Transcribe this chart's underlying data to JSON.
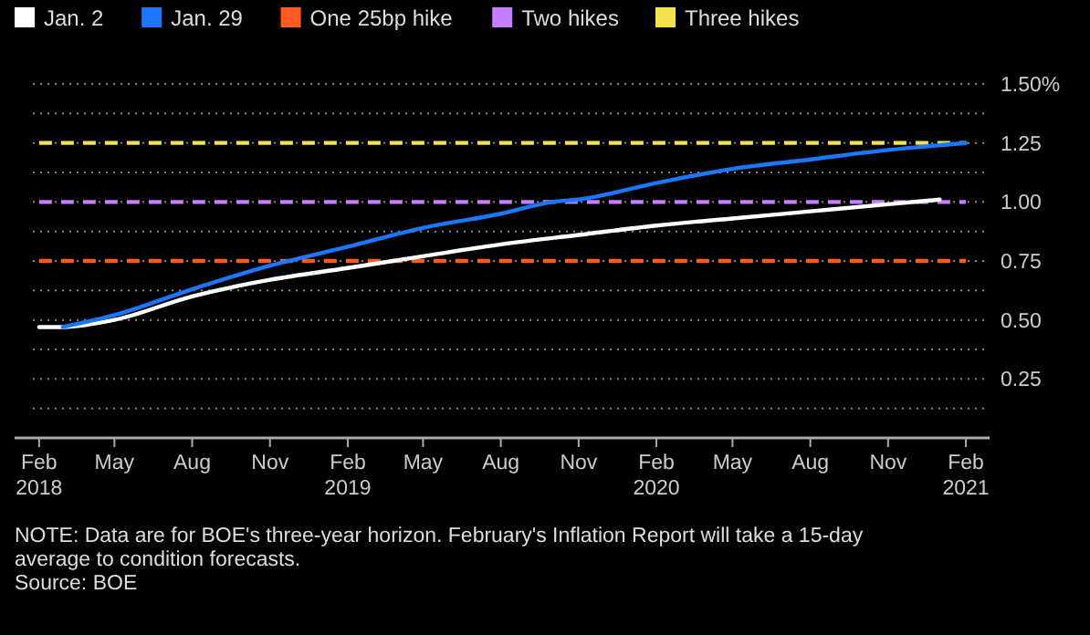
{
  "chart_data": {
    "type": "line",
    "series": [
      {
        "name": "Jan. 2",
        "color": "#ffffff",
        "x": [
          "2018-02",
          "2018-03",
          "2018-05",
          "2018-08",
          "2018-11",
          "2019-02",
          "2019-05",
          "2019-08",
          "2019-11",
          "2020-02",
          "2020-05",
          "2020-08",
          "2020-11",
          "2021-01"
        ],
        "values": [
          0.47,
          0.47,
          0.5,
          0.6,
          0.67,
          0.72,
          0.77,
          0.82,
          0.86,
          0.9,
          0.93,
          0.96,
          0.99,
          1.01
        ]
      },
      {
        "name": "Jan. 29",
        "color": "#1a78ff",
        "x": [
          "2018-03",
          "2018-05",
          "2018-08",
          "2018-11",
          "2019-02",
          "2019-05",
          "2019-08",
          "2019-10",
          "2019-11",
          "2020-02",
          "2020-05",
          "2020-08",
          "2020-11",
          "2021-02"
        ],
        "values": [
          0.47,
          0.52,
          0.63,
          0.73,
          0.81,
          0.89,
          0.95,
          1.0,
          1.01,
          1.08,
          1.14,
          1.18,
          1.22,
          1.25
        ]
      }
    ],
    "ref_lines": [
      {
        "axis": "y",
        "value": 0.75,
        "label": "One 25bp hike",
        "color": "#ff5a1f",
        "line_style": "dashed"
      },
      {
        "axis": "y",
        "value": 1.0,
        "label": "Two hikes",
        "color": "#c77dff",
        "line_style": "dashed"
      },
      {
        "axis": "y",
        "value": 1.25,
        "label": "Three hikes",
        "color": "#f5e050",
        "line_style": "dashed"
      }
    ],
    "xlim": [
      "2018-01-03",
      "2021-03-01"
    ],
    "xticks": [
      {
        "value": "2018-02",
        "label": "Feb\n2018"
      },
      {
        "value": "2018-05",
        "label": "May"
      },
      {
        "value": "2018-08",
        "label": "Aug"
      },
      {
        "value": "2018-11",
        "label": "Nov"
      },
      {
        "value": "2019-02",
        "label": "Feb\n2019"
      },
      {
        "value": "2019-05",
        "label": "May"
      },
      {
        "value": "2019-08",
        "label": "Aug"
      },
      {
        "value": "2019-11",
        "label": "Nov"
      },
      {
        "value": "2020-02",
        "label": "Feb\n2020"
      },
      {
        "value": "2020-05",
        "label": "May"
      },
      {
        "value": "2020-08",
        "label": "Aug"
      },
      {
        "value": "2020-11",
        "label": "Nov"
      },
      {
        "value": "2021-02",
        "label": "Feb\n2021"
      }
    ],
    "ylim": [
      0,
      1.5
    ],
    "yticks": [
      {
        "value": 0.125,
        "label": null
      },
      {
        "value": 0.25,
        "label": "0.25"
      },
      {
        "value": 0.375,
        "label": null
      },
      {
        "value": 0.5,
        "label": "0.50"
      },
      {
        "value": 0.625,
        "label": null
      },
      {
        "value": 0.75,
        "label": "0.75"
      },
      {
        "value": 0.875,
        "label": null
      },
      {
        "value": 1.0,
        "label": "1.00"
      },
      {
        "value": 1.125,
        "label": null
      },
      {
        "value": 1.25,
        "label": "1.25"
      },
      {
        "value": 1.375,
        "label": null
      },
      {
        "value": 1.5,
        "label": "1.50%"
      }
    ],
    "grid": "y",
    "legend": "top left",
    "marker": "none",
    "annotations": [
      "NOTE: Data are for BOE's three-year horizon. February's Inflation Report will take a 15-day average to condition forecasts.",
      "Source: BOE"
    ]
  }
}
